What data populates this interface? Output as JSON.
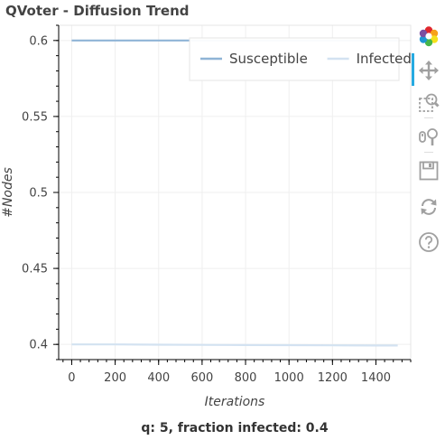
{
  "chart_data": {
    "type": "line",
    "title": "QVoter - Diffusion Trend",
    "caption": "q: 5, fraction infected: 0.4",
    "xlabel": "Iterations",
    "ylabel": "#Nodes",
    "xlim": [
      -60,
      1560
    ],
    "ylim": [
      0.39,
      0.61
    ],
    "xticks": [
      0,
      200,
      400,
      600,
      800,
      1000,
      1200,
      1400
    ],
    "yticks": [
      0.4,
      0.45,
      0.5,
      0.55,
      0.6
    ],
    "ytick_labels": [
      "0.4",
      "0.45",
      "0.5",
      "0.55",
      "0.6"
    ],
    "grid": true,
    "legend": "top-right",
    "series": [
      {
        "name": "Susceptible",
        "color": "#8fb4d6",
        "x": [
          0,
          200,
          400,
          600,
          800,
          1000,
          1200,
          1400,
          1500
        ],
        "values": [
          0.6,
          0.6,
          0.6,
          0.6,
          0.6,
          0.6,
          0.6,
          0.6,
          0.6
        ]
      },
      {
        "name": "Infected",
        "color": "#d3e2f1",
        "x": [
          0,
          200,
          400,
          600,
          800,
          1000,
          1200,
          1400,
          1500
        ],
        "values": [
          0.4,
          0.4,
          0.3998,
          0.3997,
          0.3996,
          0.3995,
          0.3994,
          0.3993,
          0.3993
        ]
      }
    ]
  },
  "toolbar": {
    "logo_icon": "bokeh-logo-icon",
    "tools": [
      "pan-icon",
      "box-zoom-icon",
      "wheel-zoom-icon",
      "save-icon",
      "reset-icon",
      "help-icon"
    ]
  }
}
